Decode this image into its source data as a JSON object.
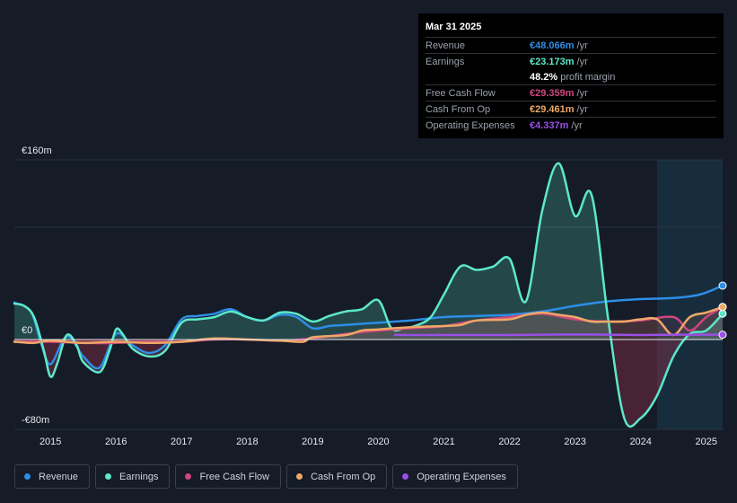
{
  "tooltip": {
    "date": "Mar 31 2025",
    "rows": [
      {
        "label": "Revenue",
        "value": "€48.066m",
        "unit": "/yr",
        "color": "#2d8ee6"
      },
      {
        "label": "Earnings",
        "value": "€23.173m",
        "unit": "/yr",
        "color": "#5de8c9"
      },
      {
        "label": "",
        "value": "48.2%",
        "unit": "profit margin",
        "color": "#ffffff"
      },
      {
        "label": "Free Cash Flow",
        "value": "€29.359m",
        "unit": "/yr",
        "color": "#d0467f"
      },
      {
        "label": "Cash From Op",
        "value": "€29.461m",
        "unit": "/yr",
        "color": "#eda867"
      },
      {
        "label": "Operating Expenses",
        "value": "€4.337m",
        "unit": "/yr",
        "color": "#9a4fe6"
      }
    ]
  },
  "legend": [
    {
      "label": "Revenue",
      "color": "#2d8ee6"
    },
    {
      "label": "Earnings",
      "color": "#5de8c9"
    },
    {
      "label": "Free Cash Flow",
      "color": "#d0467f"
    },
    {
      "label": "Cash From Op",
      "color": "#eda867"
    },
    {
      "label": "Operating Expenses",
      "color": "#9a4fe6"
    }
  ],
  "chart_data": {
    "type": "area",
    "title": "",
    "xlabel": "",
    "ylabel": "",
    "currency_unit": "€m",
    "ylim": [
      -80,
      160
    ],
    "xlim": [
      2014.45,
      2025.25
    ],
    "y_tick_labels": [
      {
        "value": 160,
        "label": "€160m"
      },
      {
        "value": 0,
        "label": "€0"
      },
      {
        "value": -80,
        "label": "-€80m"
      }
    ],
    "y_gridlines": [
      160,
      100,
      0,
      -80
    ],
    "x_ticks": [
      2015,
      2016,
      2017,
      2018,
      2019,
      2020,
      2021,
      2022,
      2023,
      2024,
      2025
    ],
    "forecast_shade_start": 2024.25,
    "series": [
      {
        "name": "Revenue",
        "color": "#2d8ee6",
        "fill": false,
        "points": [
          [
            2014.45,
            33
          ],
          [
            2014.7,
            25
          ],
          [
            2014.85,
            -2
          ],
          [
            2015.0,
            -22
          ],
          [
            2015.25,
            3
          ],
          [
            2015.5,
            -15
          ],
          [
            2015.75,
            -25
          ],
          [
            2016.0,
            5
          ],
          [
            2016.25,
            -5
          ],
          [
            2016.5,
            -12
          ],
          [
            2016.75,
            -5
          ],
          [
            2017.0,
            18
          ],
          [
            2017.25,
            21
          ],
          [
            2017.5,
            23
          ],
          [
            2017.75,
            27
          ],
          [
            2018.0,
            20
          ],
          [
            2018.25,
            17
          ],
          [
            2018.5,
            22
          ],
          [
            2018.75,
            20
          ],
          [
            2019.0,
            10
          ],
          [
            2019.25,
            12
          ],
          [
            2019.5,
            13
          ],
          [
            2019.75,
            14
          ],
          [
            2020.0,
            15
          ],
          [
            2020.5,
            17
          ],
          [
            2021.0,
            20
          ],
          [
            2021.5,
            21
          ],
          [
            2022.0,
            22
          ],
          [
            2022.5,
            25
          ],
          [
            2023.0,
            30
          ],
          [
            2023.5,
            34
          ],
          [
            2024.0,
            36
          ],
          [
            2024.5,
            37
          ],
          [
            2024.9,
            40
          ],
          [
            2025.25,
            48
          ]
        ]
      },
      {
        "name": "Earnings",
        "color": "#5de8c9",
        "fill": true,
        "points": [
          [
            2014.45,
            32
          ],
          [
            2014.6,
            30
          ],
          [
            2014.75,
            20
          ],
          [
            2014.9,
            -10
          ],
          [
            2015.0,
            -33
          ],
          [
            2015.1,
            -22
          ],
          [
            2015.25,
            4
          ],
          [
            2015.4,
            -5
          ],
          [
            2015.5,
            -20
          ],
          [
            2015.75,
            -29
          ],
          [
            2015.9,
            -10
          ],
          [
            2016.0,
            9
          ],
          [
            2016.1,
            5
          ],
          [
            2016.25,
            -8
          ],
          [
            2016.5,
            -15
          ],
          [
            2016.75,
            -10
          ],
          [
            2017.0,
            15
          ],
          [
            2017.25,
            18
          ],
          [
            2017.5,
            20
          ],
          [
            2017.75,
            25
          ],
          [
            2018.0,
            20
          ],
          [
            2018.25,
            17
          ],
          [
            2018.5,
            24
          ],
          [
            2018.75,
            23
          ],
          [
            2019.0,
            16
          ],
          [
            2019.25,
            21
          ],
          [
            2019.5,
            25
          ],
          [
            2019.75,
            27
          ],
          [
            2020.0,
            35
          ],
          [
            2020.2,
            10
          ],
          [
            2020.4,
            10
          ],
          [
            2020.6,
            13
          ],
          [
            2020.8,
            20
          ],
          [
            2021.0,
            40
          ],
          [
            2021.25,
            65
          ],
          [
            2021.5,
            62
          ],
          [
            2021.75,
            65
          ],
          [
            2022.0,
            72
          ],
          [
            2022.25,
            34
          ],
          [
            2022.5,
            115
          ],
          [
            2022.75,
            157
          ],
          [
            2023.0,
            110
          ],
          [
            2023.25,
            129
          ],
          [
            2023.5,
            20
          ],
          [
            2023.75,
            -70
          ],
          [
            2024.0,
            -70
          ],
          [
            2024.25,
            -50
          ],
          [
            2024.5,
            -15
          ],
          [
            2024.75,
            5
          ],
          [
            2025.0,
            8
          ],
          [
            2025.25,
            23
          ]
        ]
      },
      {
        "name": "Free Cash Flow",
        "color": "#d0467f",
        "fill": true,
        "points": [
          [
            2014.45,
            -2
          ],
          [
            2015.0,
            -2
          ],
          [
            2015.5,
            -3
          ],
          [
            2016.0,
            -3
          ],
          [
            2016.5,
            -2
          ],
          [
            2017.0,
            -2
          ],
          [
            2017.5,
            0
          ],
          [
            2018.0,
            0
          ],
          [
            2018.5,
            -1
          ],
          [
            2019.0,
            1
          ],
          [
            2019.5,
            5
          ],
          [
            2020.0,
            8
          ],
          [
            2020.5,
            10
          ],
          [
            2021.0,
            12
          ],
          [
            2021.5,
            17
          ],
          [
            2022.0,
            20
          ],
          [
            2022.5,
            23
          ],
          [
            2023.0,
            18
          ],
          [
            2023.5,
            16
          ],
          [
            2024.0,
            17
          ],
          [
            2024.5,
            20
          ],
          [
            2024.75,
            8
          ],
          [
            2025.0,
            20
          ],
          [
            2025.25,
            29
          ]
        ]
      },
      {
        "name": "Cash From Op",
        "color": "#eda867",
        "fill": true,
        "points": [
          [
            2014.45,
            -2
          ],
          [
            2014.75,
            -3
          ],
          [
            2015.0,
            -1
          ],
          [
            2015.5,
            -3
          ],
          [
            2016.0,
            -2
          ],
          [
            2016.5,
            -3
          ],
          [
            2017.0,
            -2
          ],
          [
            2017.5,
            1
          ],
          [
            2018.0,
            0
          ],
          [
            2018.5,
            -1
          ],
          [
            2018.85,
            -2
          ],
          [
            2019.0,
            2
          ],
          [
            2019.5,
            4
          ],
          [
            2019.75,
            8
          ],
          [
            2020.0,
            9
          ],
          [
            2020.5,
            11
          ],
          [
            2021.0,
            12
          ],
          [
            2021.25,
            13
          ],
          [
            2021.5,
            17
          ],
          [
            2022.0,
            18
          ],
          [
            2022.25,
            22
          ],
          [
            2022.5,
            24
          ],
          [
            2022.75,
            22
          ],
          [
            2023.0,
            20
          ],
          [
            2023.25,
            16
          ],
          [
            2023.5,
            16
          ],
          [
            2023.75,
            16
          ],
          [
            2024.0,
            18
          ],
          [
            2024.25,
            18
          ],
          [
            2024.5,
            4
          ],
          [
            2024.75,
            20
          ],
          [
            2025.0,
            24
          ],
          [
            2025.25,
            29
          ]
        ]
      },
      {
        "name": "Operating Expenses",
        "color": "#9a4fe6",
        "fill": false,
        "points": [
          [
            2020.25,
            4
          ],
          [
            2021.0,
            4
          ],
          [
            2022.0,
            4
          ],
          [
            2023.0,
            4.5
          ],
          [
            2024.0,
            4
          ],
          [
            2024.5,
            4.3
          ],
          [
            2025.25,
            4.3
          ]
        ]
      }
    ]
  }
}
